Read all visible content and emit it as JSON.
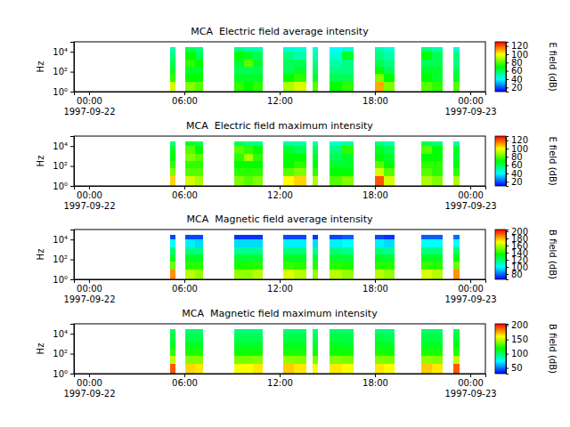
{
  "chart_data": [
    {
      "type": "heatmap",
      "title": "MCA  Electric field average intensity",
      "y_label": "Hz",
      "log": "y",
      "xlim": [
        "1997-09-21T23:03",
        "1997-09-23T00:57"
      ],
      "xticks": [
        {
          "value": "1997-09-22T00:00",
          "label": "00:00\n1997-09-22"
        },
        {
          "value": "1997-09-22T06:00",
          "label": "06:00"
        },
        {
          "value": "1997-09-22T12:00",
          "label": "12:00"
        },
        {
          "value": "1997-09-22T18:00",
          "label": "18:00"
        },
        {
          "value": "1997-09-23T00:00",
          "label": "00:00\n1997-09-23"
        }
      ],
      "ylim": [
        1,
        100000
      ],
      "yticks": [
        {
          "value": 1,
          "label": "10⁰"
        },
        {
          "value": 100,
          "label": "10²"
        },
        {
          "value": 10000,
          "label": "10⁴"
        }
      ],
      "x": [
        [
          "1997-09-22T05:05",
          "1997-09-22T05:25"
        ],
        [
          "1997-09-22T06:05",
          "1997-09-22T06:40"
        ],
        [
          "1997-09-22T06:40",
          "1997-09-22T07:10"
        ],
        [
          "1997-09-22T09:10",
          "1997-09-22T09:45"
        ],
        [
          "1997-09-22T09:45",
          "1997-09-22T10:20"
        ],
        [
          "1997-09-22T10:20",
          "1997-09-22T10:55"
        ],
        [
          "1997-09-22T12:15",
          "1997-09-22T12:55"
        ],
        [
          "1997-09-22T12:55",
          "1997-09-22T13:40"
        ],
        [
          "1997-09-22T14:05",
          "1997-09-22T14:25"
        ],
        [
          "1997-09-22T15:10",
          "1997-09-22T15:55"
        ],
        [
          "1997-09-22T15:55",
          "1997-09-22T16:40"
        ],
        [
          "1997-09-22T18:00",
          "1997-09-22T18:35"
        ],
        [
          "1997-09-22T18:35",
          "1997-09-22T19:15"
        ],
        [
          "1997-09-22T20:55",
          "1997-09-22T21:35"
        ],
        [
          "1997-09-22T21:35",
          "1997-09-22T22:15"
        ],
        [
          "1997-09-22T22:55",
          "1997-09-22T23:20"
        ]
      ],
      "y": [
        1,
        10,
        56,
        316,
        1780,
        10000,
        31600
      ],
      "z": [
        [
          95,
          75,
          65,
          60,
          55,
          50
        ],
        [
          85,
          70,
          65,
          75,
          70,
          60
        ],
        [
          80,
          70,
          65,
          70,
          60,
          55
        ],
        [
          75,
          65,
          60,
          65,
          70,
          55
        ],
        [
          70,
          65,
          60,
          80,
          65,
          50
        ],
        [
          75,
          65,
          60,
          65,
          60,
          50
        ],
        [
          90,
          70,
          60,
          60,
          55,
          45
        ],
        [
          95,
          75,
          65,
          60,
          50,
          45
        ],
        [
          80,
          65,
          60,
          55,
          50,
          45
        ],
        [
          70,
          60,
          55,
          50,
          45,
          40
        ],
        [
          75,
          60,
          55,
          55,
          65,
          45
        ],
        [
          110,
          85,
          70,
          60,
          55,
          50
        ],
        [
          85,
          70,
          60,
          55,
          50,
          45
        ],
        [
          80,
          70,
          65,
          60,
          70,
          55
        ],
        [
          75,
          65,
          65,
          60,
          60,
          50
        ],
        [
          80,
          65,
          60,
          55,
          55,
          45
        ]
      ],
      "colorbar": {
        "label": "E field (dB)",
        "zlim": [
          10,
          130
        ],
        "ticks": [
          20,
          40,
          60,
          80,
          100,
          120
        ]
      }
    },
    {
      "type": "heatmap",
      "title": "MCA  Electric field maximum intensity",
      "y_label": "Hz",
      "log": "y",
      "xlim": [
        "1997-09-21T23:03",
        "1997-09-23T00:57"
      ],
      "xticks": [
        {
          "value": "1997-09-22T00:00",
          "label": "00:00\n1997-09-22"
        },
        {
          "value": "1997-09-22T06:00",
          "label": "06:00"
        },
        {
          "value": "1997-09-22T12:00",
          "label": "12:00"
        },
        {
          "value": "1997-09-22T18:00",
          "label": "18:00"
        },
        {
          "value": "1997-09-23T00:00",
          "label": "00:00\n1997-09-23"
        }
      ],
      "ylim": [
        1,
        100000
      ],
      "yticks": [
        {
          "value": 1,
          "label": "10⁰"
        },
        {
          "value": 100,
          "label": "10²"
        },
        {
          "value": 10000,
          "label": "10⁴"
        }
      ],
      "x": [
        [
          "1997-09-22T05:05",
          "1997-09-22T05:25"
        ],
        [
          "1997-09-22T06:05",
          "1997-09-22T06:40"
        ],
        [
          "1997-09-22T06:40",
          "1997-09-22T07:10"
        ],
        [
          "1997-09-22T09:10",
          "1997-09-22T09:45"
        ],
        [
          "1997-09-22T09:45",
          "1997-09-22T10:20"
        ],
        [
          "1997-09-22T10:20",
          "1997-09-22T10:55"
        ],
        [
          "1997-09-22T12:15",
          "1997-09-22T12:55"
        ],
        [
          "1997-09-22T12:55",
          "1997-09-22T13:40"
        ],
        [
          "1997-09-22T14:05",
          "1997-09-22T14:25"
        ],
        [
          "1997-09-22T15:10",
          "1997-09-22T15:55"
        ],
        [
          "1997-09-22T15:55",
          "1997-09-22T16:40"
        ],
        [
          "1997-09-22T18:00",
          "1997-09-22T18:35"
        ],
        [
          "1997-09-22T18:35",
          "1997-09-22T19:15"
        ],
        [
          "1997-09-22T20:55",
          "1997-09-22T21:35"
        ],
        [
          "1997-09-22T21:35",
          "1997-09-22T22:15"
        ],
        [
          "1997-09-22T22:55",
          "1997-09-22T23:20"
        ]
      ],
      "y": [
        1,
        10,
        56,
        316,
        1780,
        10000,
        31600
      ],
      "z": [
        [
          105,
          85,
          75,
          70,
          65,
          55
        ],
        [
          95,
          80,
          75,
          85,
          80,
          65
        ],
        [
          90,
          80,
          75,
          80,
          70,
          60
        ],
        [
          85,
          75,
          70,
          75,
          80,
          60
        ],
        [
          80,
          75,
          70,
          90,
          75,
          55
        ],
        [
          85,
          75,
          70,
          75,
          70,
          55
        ],
        [
          100,
          80,
          70,
          70,
          65,
          50
        ],
        [
          105,
          85,
          75,
          70,
          60,
          50
        ],
        [
          90,
          75,
          70,
          65,
          60,
          50
        ],
        [
          80,
          70,
          65,
          60,
          55,
          45
        ],
        [
          85,
          70,
          65,
          65,
          75,
          50
        ],
        [
          120,
          95,
          80,
          70,
          65,
          55
        ],
        [
          95,
          80,
          70,
          65,
          60,
          50
        ],
        [
          90,
          80,
          75,
          70,
          80,
          60
        ],
        [
          85,
          75,
          75,
          70,
          70,
          55
        ],
        [
          90,
          75,
          70,
          65,
          65,
          50
        ]
      ],
      "colorbar": {
        "label": "E field (dB)",
        "zlim": [
          10,
          130
        ],
        "ticks": [
          20,
          40,
          60,
          80,
          100,
          120
        ]
      }
    },
    {
      "type": "heatmap",
      "title": "MCA  Magnetic field average intensity",
      "y_label": "Hz",
      "log": "y",
      "xlim": [
        "1997-09-21T23:03",
        "1997-09-23T00:57"
      ],
      "xticks": [
        {
          "value": "1997-09-22T00:00",
          "label": "00:00\n1997-09-22"
        },
        {
          "value": "1997-09-22T06:00",
          "label": "06:00"
        },
        {
          "value": "1997-09-22T12:00",
          "label": "12:00"
        },
        {
          "value": "1997-09-22T18:00",
          "label": "18:00"
        },
        {
          "value": "1997-09-23T00:00",
          "label": "00:00\n1997-09-23"
        }
      ],
      "ylim": [
        1,
        100000
      ],
      "yticks": [
        {
          "value": 1,
          "label": "10⁰"
        },
        {
          "value": 100,
          "label": "10²"
        },
        {
          "value": 10000,
          "label": "10⁴"
        }
      ],
      "x": [
        [
          "1997-09-22T05:05",
          "1997-09-22T05:25"
        ],
        [
          "1997-09-22T06:05",
          "1997-09-22T06:40"
        ],
        [
          "1997-09-22T06:40",
          "1997-09-22T07:10"
        ],
        [
          "1997-09-22T09:10",
          "1997-09-22T09:45"
        ],
        [
          "1997-09-22T09:45",
          "1997-09-22T10:20"
        ],
        [
          "1997-09-22T10:20",
          "1997-09-22T10:55"
        ],
        [
          "1997-09-22T12:15",
          "1997-09-22T12:55"
        ],
        [
          "1997-09-22T12:55",
          "1997-09-22T13:40"
        ],
        [
          "1997-09-22T14:05",
          "1997-09-22T14:25"
        ],
        [
          "1997-09-22T15:10",
          "1997-09-22T15:55"
        ],
        [
          "1997-09-22T15:55",
          "1997-09-22T16:40"
        ],
        [
          "1997-09-22T18:00",
          "1997-09-22T18:35"
        ],
        [
          "1997-09-22T18:35",
          "1997-09-22T19:15"
        ],
        [
          "1997-09-22T20:55",
          "1997-09-22T21:35"
        ],
        [
          "1997-09-22T21:35",
          "1997-09-22T22:15"
        ],
        [
          "1997-09-22T22:55",
          "1997-09-22T23:20"
        ]
      ],
      "y": [
        1,
        10,
        56,
        316,
        1780,
        10000,
        31600
      ],
      "z": [
        [
          185,
          150,
          130,
          120,
          100,
          75
        ],
        [
          160,
          140,
          130,
          118,
          98,
          75
        ],
        [
          155,
          140,
          130,
          118,
          95,
          75
        ],
        [
          155,
          138,
          128,
          115,
          95,
          72
        ],
        [
          155,
          138,
          128,
          115,
          95,
          72
        ],
        [
          160,
          140,
          128,
          115,
          95,
          72
        ],
        [
          165,
          142,
          130,
          118,
          98,
          75
        ],
        [
          160,
          140,
          130,
          118,
          98,
          75
        ],
        [
          155,
          140,
          128,
          115,
          95,
          72
        ],
        [
          160,
          140,
          128,
          118,
          98,
          75
        ],
        [
          155,
          138,
          128,
          115,
          100,
          78
        ],
        [
          160,
          140,
          130,
          118,
          98,
          75
        ],
        [
          155,
          140,
          128,
          115,
          95,
          72
        ],
        [
          165,
          142,
          130,
          118,
          100,
          78
        ],
        [
          160,
          140,
          130,
          118,
          100,
          78
        ],
        [
          185,
          150,
          132,
          120,
          100,
          80
        ]
      ],
      "colorbar": {
        "label": "B field (dB)",
        "zlim": [
          65,
          205
        ],
        "ticks": [
          80,
          100,
          120,
          140,
          160,
          180,
          200
        ]
      }
    },
    {
      "type": "heatmap",
      "title": "MCA  Magnetic field maximum intensity",
      "y_label": "Hz",
      "log": "y",
      "xlim": [
        "1997-09-21T23:03",
        "1997-09-23T00:57"
      ],
      "xticks": [
        {
          "value": "1997-09-22T00:00",
          "label": "00:00\n1997-09-22"
        },
        {
          "value": "1997-09-22T06:00",
          "label": "06:00"
        },
        {
          "value": "1997-09-22T12:00",
          "label": "12:00"
        },
        {
          "value": "1997-09-22T18:00",
          "label": "18:00"
        },
        {
          "value": "1997-09-23T00:00",
          "label": "00:00\n1997-09-23"
        }
      ],
      "ylim": [
        1,
        100000
      ],
      "yticks": [
        {
          "value": 1,
          "label": "10⁰"
        },
        {
          "value": 100,
          "label": "10²"
        },
        {
          "value": 10000,
          "label": "10⁴"
        }
      ],
      "x": [
        [
          "1997-09-22T05:05",
          "1997-09-22T05:25"
        ],
        [
          "1997-09-22T06:05",
          "1997-09-22T06:40"
        ],
        [
          "1997-09-22T06:40",
          "1997-09-22T07:10"
        ],
        [
          "1997-09-22T09:10",
          "1997-09-22T09:45"
        ],
        [
          "1997-09-22T09:45",
          "1997-09-22T10:20"
        ],
        [
          "1997-09-22T10:20",
          "1997-09-22T10:55"
        ],
        [
          "1997-09-22T12:15",
          "1997-09-22T12:55"
        ],
        [
          "1997-09-22T12:55",
          "1997-09-22T13:40"
        ],
        [
          "1997-09-22T14:05",
          "1997-09-22T14:25"
        ],
        [
          "1997-09-22T15:10",
          "1997-09-22T15:55"
        ],
        [
          "1997-09-22T15:55",
          "1997-09-22T16:40"
        ],
        [
          "1997-09-22T18:00",
          "1997-09-22T18:35"
        ],
        [
          "1997-09-22T18:35",
          "1997-09-22T19:15"
        ],
        [
          "1997-09-22T20:55",
          "1997-09-22T21:35"
        ],
        [
          "1997-09-22T21:35",
          "1997-09-22T22:15"
        ],
        [
          "1997-09-22T22:55",
          "1997-09-22T23:20"
        ]
      ],
      "y": [
        1,
        10,
        56,
        316,
        1780,
        10000,
        31600
      ],
      "z": [
        [
          190,
          150,
          125,
          112,
          108,
          100
        ],
        [
          168,
          140,
          122,
          112,
          105,
          98
        ],
        [
          165,
          140,
          122,
          112,
          105,
          98
        ],
        [
          160,
          138,
          120,
          110,
          104,
          96
        ],
        [
          160,
          138,
          120,
          110,
          104,
          96
        ],
        [
          165,
          140,
          120,
          110,
          104,
          96
        ],
        [
          170,
          142,
          122,
          112,
          106,
          98
        ],
        [
          165,
          140,
          122,
          112,
          106,
          98
        ],
        [
          160,
          138,
          120,
          110,
          104,
          96
        ],
        [
          165,
          140,
          120,
          112,
          106,
          100
        ],
        [
          160,
          138,
          120,
          110,
          106,
          100
        ],
        [
          165,
          140,
          122,
          112,
          106,
          98
        ],
        [
          160,
          138,
          120,
          110,
          104,
          96
        ],
        [
          170,
          142,
          122,
          112,
          106,
          100
        ],
        [
          165,
          140,
          122,
          112,
          106,
          100
        ],
        [
          190,
          150,
          125,
          114,
          108,
          102
        ]
      ],
      "colorbar": {
        "label": "B field (dB)",
        "zlim": [
          30,
          205
        ],
        "ticks": [
          50,
          100,
          150,
          200
        ]
      }
    }
  ]
}
